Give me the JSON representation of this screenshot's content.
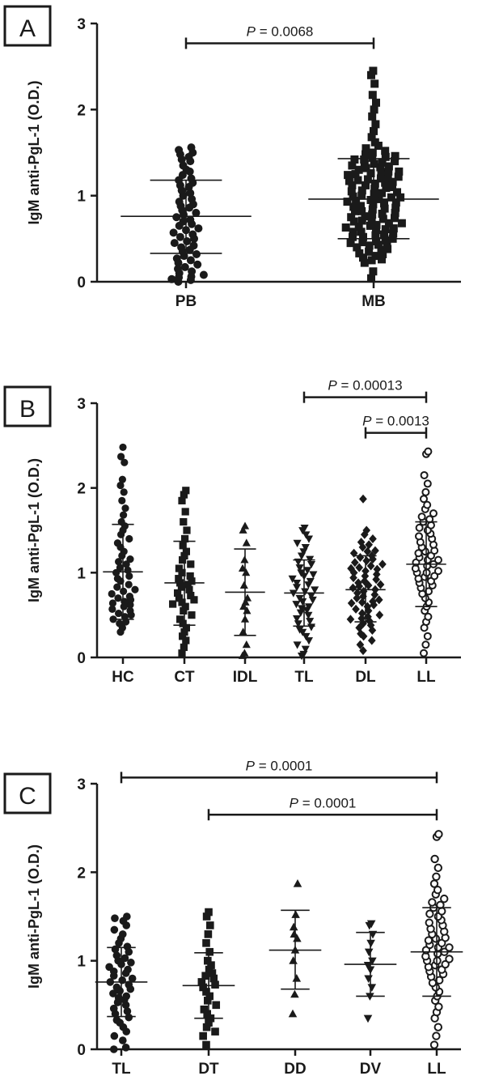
{
  "chart_data": [
    {
      "type": "scatter",
      "panel_label": "A",
      "title": "",
      "xlabel": "",
      "ylabel": "IgM anti-PgL-1 (O.D.)",
      "ylim": [
        0,
        3
      ],
      "yticks": [
        "0",
        "1",
        "2",
        "3"
      ],
      "categories": [
        "PB",
        "MB"
      ],
      "markers": [
        "circle",
        "square"
      ],
      "groups": [
        {
          "name": "PB",
          "mean": 0.76,
          "sd_low": 0.33,
          "sd_high": 1.18,
          "values": [
            0.0,
            0.02,
            0.03,
            0.05,
            0.06,
            0.08,
            0.1,
            0.12,
            0.15,
            0.17,
            0.2,
            0.22,
            0.25,
            0.27,
            0.3,
            0.32,
            0.35,
            0.37,
            0.4,
            0.42,
            0.45,
            0.47,
            0.5,
            0.52,
            0.55,
            0.57,
            0.6,
            0.62,
            0.65,
            0.67,
            0.7,
            0.72,
            0.75,
            0.78,
            0.8,
            0.83,
            0.86,
            0.88,
            0.9,
            0.93,
            0.96,
            1.0,
            1.03,
            1.06,
            1.1,
            1.12,
            1.15,
            1.18,
            1.2,
            1.24,
            1.28,
            1.3,
            1.35,
            1.4,
            1.42,
            1.45,
            1.48,
            1.5,
            1.53,
            1.56
          ]
        },
        {
          "name": "MB",
          "mean": 0.96,
          "sd_low": 0.5,
          "sd_high": 1.43,
          "values": [
            0.04,
            0.12,
            0.22,
            0.25,
            0.28,
            0.3,
            0.32,
            0.35,
            0.37,
            0.4,
            0.42,
            0.44,
            0.46,
            0.48,
            0.5,
            0.52,
            0.54,
            0.56,
            0.58,
            0.6,
            0.62,
            0.64,
            0.66,
            0.68,
            0.7,
            0.72,
            0.74,
            0.76,
            0.78,
            0.8,
            0.82,
            0.84,
            0.86,
            0.88,
            0.9,
            0.92,
            0.94,
            0.96,
            0.98,
            1.0,
            1.02,
            1.04,
            1.06,
            1.08,
            1.1,
            1.12,
            1.14,
            1.16,
            1.18,
            1.2,
            1.22,
            1.24,
            1.26,
            1.28,
            1.3,
            1.32,
            1.34,
            1.36,
            1.38,
            1.4,
            1.42,
            1.44,
            1.46,
            1.48,
            1.5,
            1.52,
            1.55,
            1.58,
            1.62,
            1.68,
            1.75,
            1.83,
            1.92,
            2.0,
            2.08,
            2.17,
            2.3,
            2.4,
            2.45,
            0.33,
            0.45,
            0.55,
            0.65,
            0.75,
            0.85,
            0.95,
            1.05,
            1.15,
            1.25,
            1.35,
            1.45,
            0.38,
            0.52,
            0.68,
            0.82,
            0.98,
            1.12,
            1.28,
            1.42,
            0.26,
            0.43,
            0.61,
            0.79,
            0.93,
            1.09,
            1.21,
            1.37,
            0.47,
            0.71,
            0.87,
            1.03,
            1.19,
            1.33,
            0.58,
            0.91,
            1.17,
            0.63,
            0.99,
            1.27,
            0.73
          ]
        }
      ],
      "comparisons": [
        {
          "from": "PB",
          "to": "MB",
          "y": 2.77,
          "label": "= 0.0068",
          "p_symbol": "P",
          "size": "large"
        }
      ]
    },
    {
      "type": "scatter",
      "panel_label": "B",
      "title": "",
      "xlabel": "",
      "ylabel": "IgM anti-PgL-1 (O.D.)",
      "ylim": [
        0,
        3
      ],
      "yticks": [
        "0",
        "1",
        "2",
        "3"
      ],
      "categories": [
        "HC",
        "CT",
        "IDL",
        "TL",
        "DL",
        "LL"
      ],
      "markers": [
        "circle",
        "square",
        "triangle",
        "triangle-down",
        "diamond",
        "circle-open"
      ],
      "groups": [
        {
          "name": "HC",
          "mean": 1.01,
          "sd_low": 0.45,
          "sd_high": 1.57,
          "values": [
            0.3,
            0.35,
            0.4,
            0.42,
            0.45,
            0.48,
            0.5,
            0.52,
            0.55,
            0.57,
            0.6,
            0.62,
            0.64,
            0.66,
            0.68,
            0.7,
            0.72,
            0.75,
            0.78,
            0.8,
            0.83,
            0.86,
            0.9,
            0.93,
            0.96,
            1.0,
            1.03,
            1.06,
            1.1,
            1.13,
            1.16,
            1.2,
            1.25,
            1.3,
            1.35,
            1.4,
            1.45,
            1.5,
            1.55,
            1.6,
            1.68,
            1.76,
            1.85,
            1.95,
            2.03,
            2.1,
            2.3,
            2.37,
            2.48
          ]
        },
        {
          "name": "CT",
          "mean": 0.88,
          "sd_low": 0.38,
          "sd_high": 1.37,
          "values": [
            0.05,
            0.12,
            0.2,
            0.25,
            0.3,
            0.35,
            0.4,
            0.45,
            0.5,
            0.55,
            0.6,
            0.65,
            0.7,
            0.73,
            0.76,
            0.8,
            0.83,
            0.86,
            0.88,
            0.9,
            0.93,
            0.96,
            1.0,
            1.05,
            1.1,
            1.15,
            1.2,
            1.25,
            1.32,
            1.4,
            1.5,
            1.6,
            1.72,
            1.85,
            1.92,
            1.97,
            0.63,
            0.68
          ]
        },
        {
          "name": "IDL",
          "mean": 0.77,
          "sd_low": 0.26,
          "sd_high": 1.28,
          "values": [
            0.02,
            0.05,
            0.15,
            0.3,
            0.45,
            0.55,
            0.6,
            0.65,
            0.7,
            0.85,
            1.0,
            1.05,
            1.15,
            1.35,
            1.5,
            1.55
          ]
        },
        {
          "name": "TL",
          "mean": 0.76,
          "sd_low": 0.37,
          "sd_high": 1.15,
          "values": [
            0.02,
            0.04,
            0.1,
            0.15,
            0.2,
            0.25,
            0.3,
            0.33,
            0.36,
            0.4,
            0.43,
            0.46,
            0.5,
            0.53,
            0.56,
            0.6,
            0.63,
            0.66,
            0.7,
            0.73,
            0.76,
            0.8,
            0.83,
            0.86,
            0.9,
            0.93,
            0.96,
            1.0,
            1.03,
            1.06,
            1.1,
            1.13,
            1.16,
            1.2,
            1.25,
            1.3,
            1.35,
            1.4,
            1.45,
            1.5,
            1.53,
            0.58,
            0.68,
            0.78,
            0.88,
            0.98
          ]
        },
        {
          "name": "DL",
          "mean": 0.8,
          "sd_low": 0.42,
          "sd_high": 1.2,
          "values": [
            0.08,
            0.15,
            0.2,
            0.25,
            0.28,
            0.32,
            0.35,
            0.38,
            0.4,
            0.43,
            0.46,
            0.48,
            0.5,
            0.52,
            0.55,
            0.57,
            0.6,
            0.62,
            0.64,
            0.66,
            0.68,
            0.7,
            0.72,
            0.74,
            0.76,
            0.78,
            0.8,
            0.82,
            0.84,
            0.86,
            0.88,
            0.9,
            0.92,
            0.94,
            0.96,
            0.98,
            1.0,
            1.02,
            1.04,
            1.06,
            1.08,
            1.1,
            1.12,
            1.14,
            1.16,
            1.18,
            1.2,
            1.23,
            1.26,
            1.3,
            1.33,
            1.36,
            1.4,
            1.45,
            1.5,
            1.87,
            0.45,
            0.65,
            0.85,
            1.05,
            1.25
          ]
        },
        {
          "name": "LL",
          "mean": 1.1,
          "sd_low": 0.6,
          "sd_high": 1.6,
          "values": [
            0.05,
            0.15,
            0.25,
            0.35,
            0.42,
            0.48,
            0.55,
            0.6,
            0.65,
            0.7,
            0.75,
            0.78,
            0.82,
            0.85,
            0.88,
            0.9,
            0.93,
            0.96,
            1.0,
            1.02,
            1.05,
            1.08,
            1.1,
            1.12,
            1.15,
            1.18,
            1.2,
            1.23,
            1.26,
            1.3,
            1.33,
            1.36,
            1.4,
            1.43,
            1.46,
            1.5,
            1.53,
            1.56,
            1.6,
            1.63,
            1.66,
            1.7,
            1.75,
            1.8,
            1.87,
            1.95,
            2.05,
            2.15,
            2.4,
            2.43,
            0.95,
            1.0,
            1.15,
            1.25
          ]
        }
      ],
      "comparisons": [
        {
          "from": "TL",
          "to": "LL",
          "y": 3.07,
          "label": "= 0.00013",
          "p_symbol": "P",
          "size": "large"
        },
        {
          "from": "DL",
          "to": "LL",
          "y": 2.65,
          "label": "= 0.0013",
          "p_symbol": "P",
          "size": "small"
        }
      ]
    },
    {
      "type": "scatter",
      "panel_label": "C",
      "title": "",
      "xlabel": "",
      "ylabel": "IgM anti-PgL-1 (O.D.)",
      "ylim": [
        0,
        3
      ],
      "yticks": [
        "0",
        "1",
        "2",
        "3"
      ],
      "categories": [
        "TL",
        "DT",
        "DD",
        "DV",
        "LL"
      ],
      "markers": [
        "circle",
        "square",
        "triangle",
        "triangle-down",
        "circle-open"
      ],
      "groups": [
        {
          "name": "TL",
          "mean": 0.76,
          "sd_low": 0.37,
          "sd_high": 1.15,
          "values": [
            0.0,
            0.02,
            0.1,
            0.15,
            0.2,
            0.25,
            0.3,
            0.33,
            0.36,
            0.4,
            0.43,
            0.46,
            0.5,
            0.53,
            0.56,
            0.6,
            0.63,
            0.66,
            0.7,
            0.73,
            0.76,
            0.8,
            0.83,
            0.86,
            0.9,
            0.93,
            0.96,
            1.0,
            1.03,
            1.06,
            1.1,
            1.13,
            1.16,
            1.2,
            1.25,
            1.3,
            1.35,
            1.4,
            1.45,
            1.48,
            1.5,
            0.58,
            0.68,
            0.78,
            0.88,
            0.98
          ]
        },
        {
          "name": "DT",
          "mean": 0.72,
          "sd_low": 0.35,
          "sd_high": 1.09,
          "values": [
            0.05,
            0.15,
            0.2,
            0.25,
            0.3,
            0.35,
            0.4,
            0.45,
            0.5,
            0.55,
            0.6,
            0.65,
            0.7,
            0.73,
            0.76,
            0.8,
            0.83,
            0.86,
            0.9,
            0.95,
            1.0,
            1.1,
            1.2,
            1.3,
            1.4,
            1.5,
            1.55
          ]
        },
        {
          "name": "DD",
          "mean": 1.12,
          "sd_low": 0.68,
          "sd_high": 1.57,
          "values": [
            0.4,
            0.62,
            0.8,
            1.0,
            1.12,
            1.25,
            1.38,
            1.52,
            1.87,
            1.3
          ]
        },
        {
          "name": "DV",
          "mean": 0.96,
          "sd_low": 0.6,
          "sd_high": 1.32,
          "values": [
            0.35,
            0.6,
            0.7,
            0.8,
            0.9,
            1.0,
            1.1,
            1.2,
            1.3,
            1.4,
            1.42,
            0.95
          ]
        },
        {
          "name": "LL",
          "mean": 1.1,
          "sd_low": 0.6,
          "sd_high": 1.6,
          "values": [
            0.05,
            0.15,
            0.25,
            0.35,
            0.42,
            0.48,
            0.55,
            0.6,
            0.65,
            0.7,
            0.75,
            0.78,
            0.82,
            0.85,
            0.88,
            0.9,
            0.93,
            0.96,
            1.0,
            1.02,
            1.05,
            1.08,
            1.1,
            1.12,
            1.15,
            1.18,
            1.2,
            1.23,
            1.26,
            1.3,
            1.33,
            1.36,
            1.4,
            1.43,
            1.46,
            1.5,
            1.53,
            1.56,
            1.6,
            1.63,
            1.66,
            1.7,
            1.75,
            1.8,
            1.87,
            1.95,
            2.05,
            2.15,
            2.4,
            2.43,
            0.95,
            1.0,
            1.15,
            1.25
          ]
        }
      ],
      "comparisons": [
        {
          "from": "TL",
          "to": "LL",
          "y": 3.07,
          "label": "= 0.0001",
          "p_symbol": "P",
          "size": "large"
        },
        {
          "from": "DT",
          "to": "LL",
          "y": 2.65,
          "label": "= 0.0001",
          "p_symbol": "P",
          "size": "large"
        }
      ]
    }
  ]
}
